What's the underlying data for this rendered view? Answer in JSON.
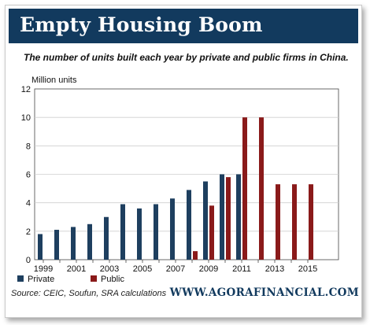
{
  "header": {
    "title": "Empty Housing Boom",
    "subtitle": "The number of units built each year by private and public firms in China."
  },
  "footer": {
    "source": "Source: CEIC, Soufun, SRA calculations",
    "website": "WWW.AGORAFINANCIAL.COM"
  },
  "colors": {
    "banner": "#123a5e",
    "private": "#1e3f5f",
    "public": "#8a1a1a"
  },
  "chart_data": {
    "type": "bar",
    "ylabel": "Million units",
    "ylim": [
      0,
      12
    ],
    "yticks": [
      0,
      2,
      4,
      6,
      8,
      10,
      12
    ],
    "x": [
      1999,
      2000,
      2001,
      2002,
      2003,
      2004,
      2005,
      2006,
      2007,
      2008,
      2009,
      2010,
      2011,
      2012,
      2013,
      2014,
      2015
    ],
    "xtick_labels": [
      "1999",
      "2001",
      "2003",
      "2005",
      "2007",
      "2009",
      "2011",
      "2013",
      "2015"
    ],
    "grid": "horizontal",
    "legend_position": "bottom-left",
    "series": [
      {
        "name": "Private",
        "color": "#1e3f5f",
        "values": [
          1.8,
          2.1,
          2.3,
          2.5,
          3.0,
          3.9,
          3.6,
          3.9,
          4.3,
          4.9,
          5.5,
          6.0,
          6.0,
          null,
          null,
          null,
          null
        ]
      },
      {
        "name": "Public",
        "color": "#8a1a1a",
        "values": [
          null,
          null,
          null,
          null,
          null,
          null,
          null,
          null,
          null,
          0.6,
          3.8,
          5.8,
          10.0,
          10.0,
          5.3,
          5.3,
          5.3
        ]
      }
    ]
  }
}
